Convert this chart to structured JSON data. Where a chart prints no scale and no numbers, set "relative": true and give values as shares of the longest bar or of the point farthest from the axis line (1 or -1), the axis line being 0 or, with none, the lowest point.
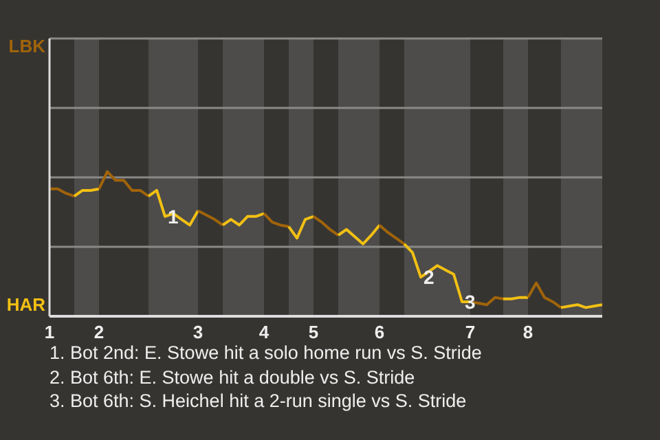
{
  "chart_data": {
    "type": "line",
    "relative": true,
    "categories": [
      "1",
      null,
      null,
      null,
      null,
      null,
      "2",
      null,
      null,
      null,
      null,
      null,
      null,
      null,
      null,
      null,
      null,
      null,
      "3",
      null,
      null,
      null,
      null,
      null,
      null,
      null,
      "4",
      null,
      null,
      null,
      null,
      null,
      "5",
      null,
      null,
      null,
      null,
      null,
      null,
      null,
      "6",
      null,
      null,
      null,
      null,
      null,
      null,
      null,
      null,
      null,
      null,
      "7",
      null,
      null,
      null,
      null,
      null,
      null,
      "8",
      null,
      null,
      null,
      null,
      null,
      null,
      null,
      null,
      null
    ],
    "series": [
      {
        "color": "#a0640a",
        "values": [
          0.88,
          0.88,
          0.85,
          0.83,
          null,
          null,
          null,
          null,
          null,
          null,
          null,
          null,
          null,
          null,
          null,
          null,
          null,
          null,
          null,
          null,
          null,
          null,
          null,
          null,
          null,
          null,
          null,
          null,
          null,
          null,
          null,
          null,
          null,
          null,
          null,
          null,
          null,
          null,
          null,
          null,
          null,
          null,
          null,
          null,
          null,
          null,
          null,
          null,
          null,
          null,
          null,
          null,
          null,
          null,
          null,
          null,
          null,
          null,
          null,
          null,
          null,
          null,
          null,
          null,
          null,
          null,
          null,
          null
        ]
      },
      {
        "color": "#f2c014",
        "values": [
          null,
          null,
          null,
          0.83,
          0.87,
          0.87,
          0.88,
          null,
          null,
          null,
          null,
          null,
          null,
          null,
          null,
          null,
          null,
          null,
          null,
          null,
          null,
          null,
          null,
          null,
          null,
          null,
          null,
          null,
          null,
          null,
          null,
          null,
          null,
          null,
          null,
          null,
          null,
          null,
          null,
          null,
          null,
          null,
          null,
          null,
          null,
          null,
          null,
          null,
          null,
          null,
          null,
          null,
          null,
          null,
          null,
          null,
          null,
          null,
          null,
          null,
          null,
          null,
          null,
          null,
          null,
          null,
          null,
          null
        ]
      },
      {
        "color": "#a0640a",
        "values": [
          null,
          null,
          null,
          null,
          null,
          null,
          0.88,
          1,
          0.94,
          0.94,
          0.87,
          0.87,
          0.83,
          null,
          null,
          null,
          null,
          null,
          null,
          null,
          null,
          null,
          null,
          null,
          null,
          null,
          null,
          null,
          null,
          null,
          null,
          null,
          null,
          null,
          null,
          null,
          null,
          null,
          null,
          null,
          null,
          null,
          null,
          null,
          null,
          null,
          null,
          null,
          null,
          null,
          null,
          null,
          null,
          null,
          null,
          null,
          null,
          null,
          null,
          null,
          null,
          null,
          null,
          null,
          null,
          null,
          null,
          null
        ]
      },
      {
        "color": "#f2c014",
        "values": [
          null,
          null,
          null,
          null,
          null,
          null,
          null,
          null,
          null,
          null,
          null,
          null,
          0.83,
          0.87,
          0.69,
          0.71,
          0.67,
          0.63,
          0.73,
          null,
          null,
          null,
          null,
          null,
          null,
          null,
          null,
          null,
          null,
          null,
          null,
          null,
          null,
          null,
          null,
          null,
          null,
          null,
          null,
          null,
          null,
          null,
          null,
          null,
          null,
          null,
          null,
          null,
          null,
          null,
          null,
          null,
          null,
          null,
          null,
          null,
          null,
          null,
          null,
          null,
          null,
          null,
          null,
          null,
          null,
          null,
          null,
          null
        ]
      },
      {
        "color": "#a0640a",
        "values": [
          null,
          null,
          null,
          null,
          null,
          null,
          null,
          null,
          null,
          null,
          null,
          null,
          null,
          null,
          null,
          null,
          null,
          null,
          0.73,
          0.7,
          0.67,
          0.63,
          null,
          null,
          null,
          null,
          null,
          null,
          null,
          null,
          null,
          null,
          null,
          null,
          null,
          null,
          null,
          null,
          null,
          null,
          null,
          null,
          null,
          null,
          null,
          null,
          null,
          null,
          null,
          null,
          null,
          null,
          null,
          null,
          null,
          null,
          null,
          null,
          null,
          null,
          null,
          null,
          null,
          null,
          null,
          null,
          null,
          null
        ]
      },
      {
        "color": "#f2c014",
        "values": [
          null,
          null,
          null,
          null,
          null,
          null,
          null,
          null,
          null,
          null,
          null,
          null,
          null,
          null,
          null,
          null,
          null,
          null,
          null,
          null,
          null,
          0.63,
          0.67,
          0.63,
          0.69,
          0.69,
          0.71,
          null,
          null,
          null,
          null,
          null,
          null,
          null,
          null,
          null,
          null,
          null,
          null,
          null,
          null,
          null,
          null,
          null,
          null,
          null,
          null,
          null,
          null,
          null,
          null,
          null,
          null,
          null,
          null,
          null,
          null,
          null,
          null,
          null,
          null,
          null,
          null,
          null,
          null,
          null,
          null,
          null
        ]
      },
      {
        "color": "#a0640a",
        "values": [
          null,
          null,
          null,
          null,
          null,
          null,
          null,
          null,
          null,
          null,
          null,
          null,
          null,
          null,
          null,
          null,
          null,
          null,
          null,
          null,
          null,
          null,
          null,
          null,
          null,
          null,
          0.71,
          0.65,
          0.63,
          0.62,
          null,
          null,
          null,
          null,
          null,
          null,
          null,
          null,
          null,
          null,
          null,
          null,
          null,
          null,
          null,
          null,
          null,
          null,
          null,
          null,
          null,
          null,
          null,
          null,
          null,
          null,
          null,
          null,
          null,
          null,
          null,
          null,
          null,
          null,
          null,
          null,
          null,
          null
        ]
      },
      {
        "color": "#f2c014",
        "values": [
          null,
          null,
          null,
          null,
          null,
          null,
          null,
          null,
          null,
          null,
          null,
          null,
          null,
          null,
          null,
          null,
          null,
          null,
          null,
          null,
          null,
          null,
          null,
          null,
          null,
          null,
          null,
          null,
          null,
          0.62,
          0.54,
          0.67,
          0.69,
          null,
          null,
          null,
          null,
          null,
          null,
          null,
          null,
          null,
          null,
          null,
          null,
          null,
          null,
          null,
          null,
          null,
          null,
          null,
          null,
          null,
          null,
          null,
          null,
          null,
          null,
          null,
          null,
          null,
          null,
          null,
          null,
          null,
          null,
          null
        ]
      },
      {
        "color": "#a0640a",
        "values": [
          null,
          null,
          null,
          null,
          null,
          null,
          null,
          null,
          null,
          null,
          null,
          null,
          null,
          null,
          null,
          null,
          null,
          null,
          null,
          null,
          null,
          null,
          null,
          null,
          null,
          null,
          null,
          null,
          null,
          null,
          null,
          null,
          0.69,
          0.65,
          0.6,
          0.56,
          null,
          null,
          null,
          null,
          null,
          null,
          null,
          null,
          null,
          null,
          null,
          null,
          null,
          null,
          null,
          null,
          null,
          null,
          null,
          null,
          null,
          null,
          null,
          null,
          null,
          null,
          null,
          null,
          null,
          null,
          null,
          null
        ]
      },
      {
        "color": "#f2c014",
        "values": [
          null,
          null,
          null,
          null,
          null,
          null,
          null,
          null,
          null,
          null,
          null,
          null,
          null,
          null,
          null,
          null,
          null,
          null,
          null,
          null,
          null,
          null,
          null,
          null,
          null,
          null,
          null,
          null,
          null,
          null,
          null,
          null,
          null,
          null,
          null,
          0.56,
          0.6,
          0.55,
          0.5,
          0.56,
          0.63,
          null,
          null,
          null,
          null,
          null,
          null,
          null,
          null,
          null,
          null,
          null,
          null,
          null,
          null,
          null,
          null,
          null,
          null,
          null,
          null,
          null,
          null,
          null,
          null,
          null,
          null,
          null
        ]
      },
      {
        "color": "#a0640a",
        "values": [
          null,
          null,
          null,
          null,
          null,
          null,
          null,
          null,
          null,
          null,
          null,
          null,
          null,
          null,
          null,
          null,
          null,
          null,
          null,
          null,
          null,
          null,
          null,
          null,
          null,
          null,
          null,
          null,
          null,
          null,
          null,
          null,
          null,
          null,
          null,
          null,
          null,
          null,
          null,
          null,
          0.63,
          0.58,
          0.54,
          0.5,
          null,
          null,
          null,
          null,
          null,
          null,
          null,
          null,
          null,
          null,
          null,
          null,
          null,
          null,
          null,
          null,
          null,
          null,
          null,
          null,
          null,
          null,
          null,
          null
        ]
      },
      {
        "color": "#f2c014",
        "values": [
          null,
          null,
          null,
          null,
          null,
          null,
          null,
          null,
          null,
          null,
          null,
          null,
          null,
          null,
          null,
          null,
          null,
          null,
          null,
          null,
          null,
          null,
          null,
          null,
          null,
          null,
          null,
          null,
          null,
          null,
          null,
          null,
          null,
          null,
          null,
          null,
          null,
          null,
          null,
          null,
          null,
          null,
          null,
          0.5,
          0.44,
          0.27,
          0.31,
          0.35,
          0.32,
          0.29,
          0.1,
          0.1,
          null,
          null,
          null,
          null,
          null,
          null,
          null,
          null,
          null,
          null,
          null,
          null,
          null,
          null,
          null,
          null
        ]
      },
      {
        "color": "#a0640a",
        "values": [
          null,
          null,
          null,
          null,
          null,
          null,
          null,
          null,
          null,
          null,
          null,
          null,
          null,
          null,
          null,
          null,
          null,
          null,
          null,
          null,
          null,
          null,
          null,
          null,
          null,
          null,
          null,
          null,
          null,
          null,
          null,
          null,
          null,
          null,
          null,
          null,
          null,
          null,
          null,
          null,
          null,
          null,
          null,
          null,
          null,
          null,
          null,
          null,
          null,
          null,
          null,
          0.1,
          0.09,
          0.08,
          0.13,
          0.12,
          null,
          null,
          null,
          null,
          null,
          null,
          null,
          null,
          null,
          null,
          null,
          null
        ]
      },
      {
        "color": "#f2c014",
        "values": [
          null,
          null,
          null,
          null,
          null,
          null,
          null,
          null,
          null,
          null,
          null,
          null,
          null,
          null,
          null,
          null,
          null,
          null,
          null,
          null,
          null,
          null,
          null,
          null,
          null,
          null,
          null,
          null,
          null,
          null,
          null,
          null,
          null,
          null,
          null,
          null,
          null,
          null,
          null,
          null,
          null,
          null,
          null,
          null,
          null,
          null,
          null,
          null,
          null,
          null,
          null,
          null,
          null,
          null,
          null,
          0.12,
          0.12,
          0.13,
          0.13,
          null,
          null,
          null,
          null,
          null,
          null,
          null,
          null,
          null
        ]
      },
      {
        "color": "#a0640a",
        "values": [
          null,
          null,
          null,
          null,
          null,
          null,
          null,
          null,
          null,
          null,
          null,
          null,
          null,
          null,
          null,
          null,
          null,
          null,
          null,
          null,
          null,
          null,
          null,
          null,
          null,
          null,
          null,
          null,
          null,
          null,
          null,
          null,
          null,
          null,
          null,
          null,
          null,
          null,
          null,
          null,
          null,
          null,
          null,
          null,
          null,
          null,
          null,
          null,
          null,
          null,
          null,
          null,
          null,
          null,
          null,
          null,
          null,
          null,
          0.13,
          0.23,
          0.13,
          0.1,
          0.06,
          null,
          null,
          null,
          null,
          null
        ]
      },
      {
        "color": "#f2c014",
        "values": [
          null,
          null,
          null,
          null,
          null,
          null,
          null,
          null,
          null,
          null,
          null,
          null,
          null,
          null,
          null,
          null,
          null,
          null,
          null,
          null,
          null,
          null,
          null,
          null,
          null,
          null,
          null,
          null,
          null,
          null,
          null,
          null,
          null,
          null,
          null,
          null,
          null,
          null,
          null,
          null,
          null,
          null,
          null,
          null,
          null,
          null,
          null,
          null,
          null,
          null,
          null,
          null,
          null,
          null,
          null,
          null,
          null,
          null,
          null,
          null,
          null,
          null,
          0.06,
          0.07,
          0.08,
          0.06,
          0.07,
          0.08
        ]
      }
    ],
    "ref_lines": [
      {
        "axis": "y",
        "value": 0.48,
        "color": "#8a8987"
      },
      {
        "axis": "y",
        "value": 0.96,
        "color": "#8a8987"
      },
      {
        "axis": "y",
        "value": 1.44,
        "color": "#8a8987"
      },
      {
        "axis": "y",
        "value": 1.92,
        "color": "#8a8987"
      }
    ],
    "line_style": "solid",
    "marker": "none",
    "annotations": [
      "LBK",
      "HAR",
      {
        "text": "1",
        "y": 0.69
      },
      {
        "text": "2",
        "y": 0.27
      },
      {
        "text": "3",
        "y": 0.1
      },
      "1. Bot 2nd: E. Stowe hit a solo home run vs S. Stride",
      "2. Bot 6th: E. Stowe hit a double vs S. Stride",
      "3. Bot 6th: S. Heichel hit a 2-run single vs S. Stride"
    ]
  }
}
